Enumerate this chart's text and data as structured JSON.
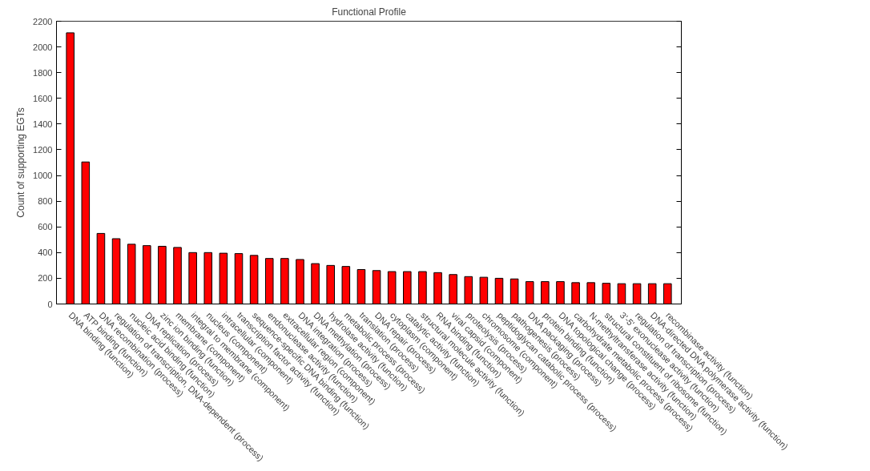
{
  "chart_data": {
    "type": "bar",
    "title": "Functional Profile",
    "ylabel": "Count of supporting EGTs",
    "categories": [
      "DNA binding (function)",
      "ATP binding (function)",
      "DNA recombination (process)",
      "regulation of transcription, DNA-dependent (process)",
      "nucleic acid binding (function)",
      "DNA replication (process)",
      "zinc ion binding (function)",
      "membrane (component)",
      "integral to membrane (component)",
      "nucleus (component)",
      "intracellular (component)",
      "transcription factor activity (function)",
      "sequence-specific DNA binding (function)",
      "endonuclease activity (function)",
      "extracellular region (component)",
      "DNA integration (process)",
      "DNA methylation (process)",
      "hydrolase activity (function)",
      "metabolic process (process)",
      "translation (process)",
      "DNA repair (process)",
      "cytoplasm (component)",
      "catalytic activity (function)",
      "structural molecule activity (function)",
      "RNA binding (function)",
      "viral capsid (component)",
      "proteolysis (process)",
      "chromosome (component)",
      "peptidoglycan catabolic process (process)",
      "pathogenesis (process)",
      "DNA packaging (process)",
      "protein binding (function)",
      "DNA topological change (process)",
      "carbohydrate metabolic process (process)",
      "N-methyltransferase activity (function)",
      "structural constituent of ribosome (function)",
      "3'-5' exonuclease activity (function)",
      "regulation of transcription (process)",
      "DNA-directed DNA polymerase activity (function)",
      "recombinase activity (function)"
    ],
    "values": [
      2110,
      1105,
      549,
      508,
      465,
      454,
      449,
      440,
      400,
      400,
      395,
      392,
      378,
      354,
      354,
      346,
      314,
      300,
      292,
      268,
      260,
      252,
      252,
      252,
      244,
      229,
      213,
      208,
      200,
      195,
      174,
      174,
      174,
      166,
      166,
      161,
      158,
      158,
      158,
      158
    ],
    "color": "#ff0000",
    "ylim": [
      0,
      2200
    ],
    "yticks": [
      0,
      200,
      400,
      600,
      800,
      1000,
      1200,
      1400,
      1600,
      1800,
      2000,
      2200
    ],
    "grid": false
  }
}
